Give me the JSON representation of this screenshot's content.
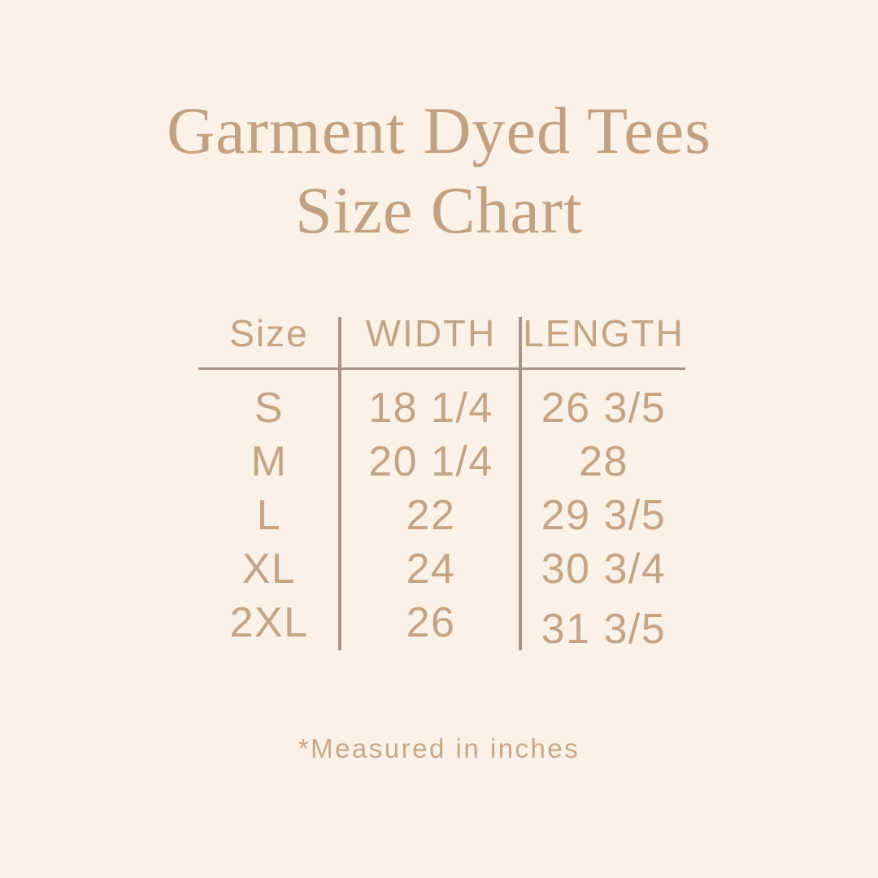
{
  "colors": {
    "background": "#FBF1E6",
    "title_text": "#C1A183",
    "table_text": "#C3A486",
    "rule_lines": "#A79488",
    "footnote_text": "#C6A88C"
  },
  "title": {
    "line1": "Garment Dyed Tees",
    "line2": "Size Chart"
  },
  "table": {
    "headers": {
      "size": "Size",
      "width": "WIDTH",
      "length": "LENGTH"
    },
    "rows": [
      {
        "size": "S",
        "width": "18 1/4",
        "length": "26 3/5"
      },
      {
        "size": "M",
        "width": "20 1/4",
        "length": "28"
      },
      {
        "size": "L",
        "width": "22",
        "length": "29 3/5"
      },
      {
        "size": "XL",
        "width": "24",
        "length": "30 3/4"
      },
      {
        "size": "2XL",
        "width": "26",
        "length": "31 3/5"
      }
    ]
  },
  "footnote": "*Measured in inches",
  "chart_data": {
    "type": "table",
    "title": "Garment Dyed Tees Size Chart",
    "columns": [
      "Size",
      "WIDTH",
      "LENGTH"
    ],
    "rows": [
      [
        "S",
        "18 1/4",
        "26 3/5"
      ],
      [
        "M",
        "20 1/4",
        "28"
      ],
      [
        "L",
        "22",
        "29 3/5"
      ],
      [
        "XL",
        "24",
        "30 3/4"
      ],
      [
        "2XL",
        "26",
        "31 3/5"
      ]
    ],
    "units": "inches",
    "note": "*Measured in inches",
    "layout": {
      "header_rule": true,
      "column_dividers": true,
      "outer_border": false
    }
  }
}
